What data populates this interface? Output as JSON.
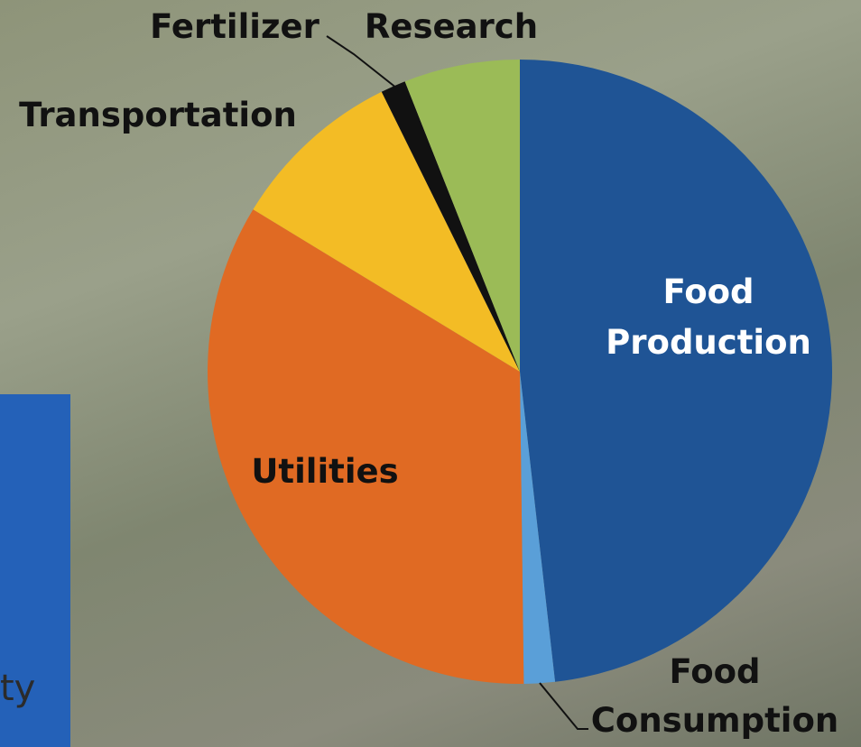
{
  "chart_data": {
    "type": "pie",
    "categories": [
      "Food Production",
      "Food Consumption",
      "Utilities",
      "Transportation",
      "Fertilizer",
      "Research"
    ],
    "values": [
      48.2,
      1.6,
      33.9,
      9,
      1.3,
      6
    ],
    "colors": [
      "#1f5495",
      "#5a9fd8",
      "#e06a23",
      "#f3bc25",
      "#111111",
      "#9bbb57"
    ]
  },
  "side_panel": {
    "text": "ty"
  }
}
